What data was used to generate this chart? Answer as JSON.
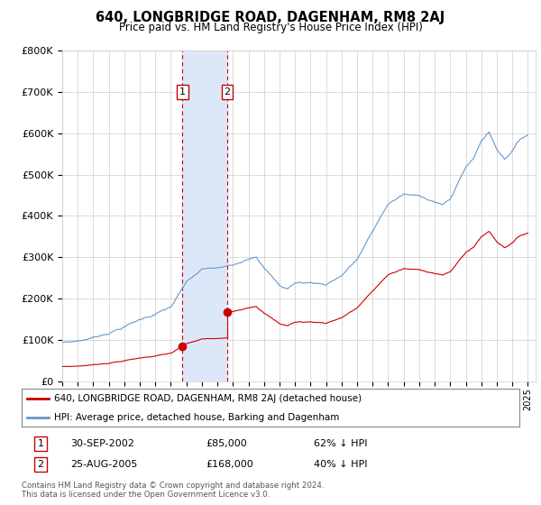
{
  "title": "640, LONGBRIDGE ROAD, DAGENHAM, RM8 2AJ",
  "subtitle": "Price paid vs. HM Land Registry's House Price Index (HPI)",
  "ylabel_ticks": [
    "£0",
    "£100K",
    "£200K",
    "£300K",
    "£400K",
    "£500K",
    "£600K",
    "£700K",
    "£800K"
  ],
  "ytick_values": [
    0,
    100000,
    200000,
    300000,
    400000,
    500000,
    600000,
    700000,
    800000
  ],
  "ylim": [
    0,
    800000
  ],
  "xlim_start": 1995.0,
  "xlim_end": 2025.5,
  "sale1_year": 2002.75,
  "sale1_price": 85000,
  "sale1_label": "1",
  "sale1_text": "30-SEP-2002",
  "sale1_amount": "£85,000",
  "sale1_hpi": "62% ↓ HPI",
  "sale2_year": 2005.625,
  "sale2_price": 168000,
  "sale2_label": "2",
  "sale2_text": "25-AUG-2005",
  "sale2_amount": "£168,000",
  "sale2_hpi": "40% ↓ HPI",
  "legend_line1": "640, LONGBRIDGE ROAD, DAGENHAM, RM8 2AJ (detached house)",
  "legend_line2": "HPI: Average price, detached house, Barking and Dagenham",
  "footer1": "Contains HM Land Registry data © Crown copyright and database right 2024.",
  "footer2": "This data is licensed under the Open Government Licence v3.0.",
  "line_color_red": "#cc0000",
  "line_color_blue": "#6699cc",
  "shade_color": "#dce8f8",
  "background_color": "#ffffff",
  "grid_color": "#cccccc"
}
